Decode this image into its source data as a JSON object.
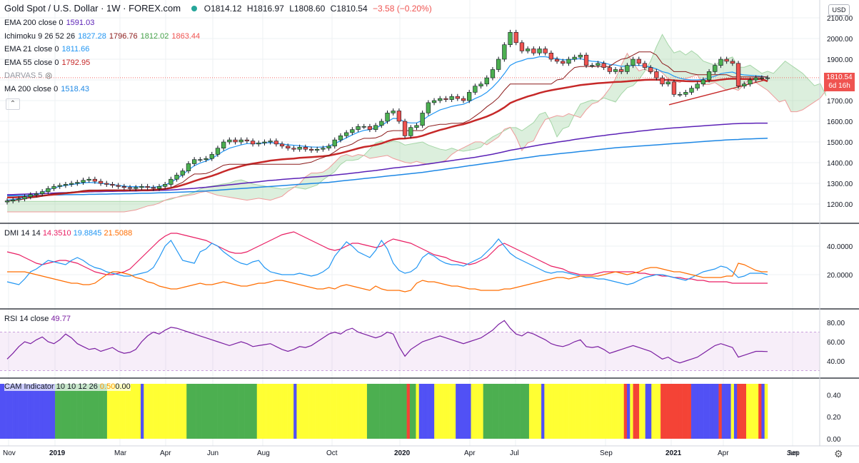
{
  "header": {
    "title": "Gold Spot / U.S. Dollar · 1W · FOREX.com",
    "open": "O1814.12",
    "high": "H1816.97",
    "low": "L1808.60",
    "close": "C1810.54",
    "change": "−3.58 (−0.20%)"
  },
  "indicators": [
    {
      "label": "EMA 200 close 0",
      "values": [
        {
          "v": "1591.03",
          "color": "#5b21b6"
        }
      ]
    },
    {
      "label": "Ichimoku 9 26 52 26",
      "values": [
        {
          "v": "1827.28",
          "color": "#2196f3"
        },
        {
          "v": "1796.76",
          "color": "#8b1a1a"
        },
        {
          "v": "1812.02",
          "color": "#43a047"
        },
        {
          "v": "1863.44",
          "color": "#ef5350"
        }
      ]
    },
    {
      "label": "EMA 21 close 0",
      "values": [
        {
          "v": "1811.66",
          "color": "#2196f3"
        }
      ]
    },
    {
      "label": "EMA 55 close 0",
      "values": [
        {
          "v": "1792.95",
          "color": "#c62828"
        }
      ]
    },
    {
      "label": "DARVAS 5",
      "values": [],
      "hidden": true
    },
    {
      "label": "MA 200 close 0",
      "values": [
        {
          "v": "1518.43",
          "color": "#1e88e5"
        }
      ]
    }
  ],
  "currency_button": "USD",
  "price_tag": {
    "price": "1810.54",
    "countdown": "6d 16h"
  },
  "dmi_label": {
    "label": "DMI 14 14",
    "v1": "14.3510",
    "v2": "19.8845",
    "v3": "21.5088"
  },
  "rsi_label": {
    "label": "RSI 14 close",
    "v": "49.77"
  },
  "cam_label": {
    "label": "CAM Indicator 10 10 12 26",
    "v": "0.50",
    "v2": "0.00"
  },
  "price_axis": [
    "2100.00",
    "2000.00",
    "1900.00",
    "1800.00",
    "1700.00",
    "1600.00",
    "1500.00",
    "1400.00",
    "1300.00",
    "1200.00"
  ],
  "dmi_axis": [
    "40.0000",
    "20.0000"
  ],
  "rsi_axis": [
    "80.00",
    "60.00",
    "40.00"
  ],
  "cam_axis": [
    "0.40",
    "0.20",
    "0.00"
  ],
  "time_axis": [
    "Nov",
    "2019",
    "Mar",
    "Apr",
    "Jun",
    "Aug",
    "Oct",
    "2020",
    "Apr",
    "Jul",
    "Sep",
    "2021",
    "Apr",
    "Jun",
    "Sep"
  ],
  "colors": {
    "up": "#4caf50",
    "down": "#ef5350",
    "ema21": "#2196f3",
    "ema55": "#c62828",
    "ema200": "#5b21b6",
    "ma200": "#1e88e5",
    "cloud_green": "#a5d6a7",
    "cloud_red": "#ef9a9a",
    "dmi_plus": "#2196f3",
    "dmi_minus": "#ff6d00",
    "adx": "#e91e63",
    "rsi": "#7b1fa2",
    "cam_green": "#4caf50",
    "cam_yellow": "#ffff33",
    "cam_blue": "#5151f5",
    "cam_red": "#f44336"
  },
  "chart_data": {
    "type": "candlestick",
    "title": "Gold Spot / U.S. Dollar · 1W · FOREX.com",
    "ylim": [
      1150,
      2150
    ],
    "close_series": [
      1215,
      1220,
      1225,
      1235,
      1245,
      1250,
      1260,
      1275,
      1285,
      1290,
      1295,
      1300,
      1305,
      1315,
      1320,
      1310,
      1300,
      1295,
      1290,
      1285,
      1280,
      1275,
      1280,
      1285,
      1280,
      1275,
      1285,
      1295,
      1320,
      1340,
      1360,
      1395,
      1415,
      1415,
      1420,
      1440,
      1470,
      1500,
      1510,
      1500,
      1510,
      1505,
      1490,
      1495,
      1500,
      1505,
      1490,
      1480,
      1470,
      1465,
      1475,
      1465,
      1460,
      1465,
      1470,
      1480,
      1510,
      1530,
      1545,
      1560,
      1575,
      1575,
      1560,
      1580,
      1600,
      1640,
      1650,
      1600,
      1530,
      1570,
      1580,
      1640,
      1690,
      1700,
      1710,
      1705,
      1720,
      1710,
      1700,
      1740,
      1770,
      1780,
      1810,
      1850,
      1900,
      1970,
      2030,
      1980,
      1940,
      1950,
      1930,
      1950,
      1930,
      1900,
      1890,
      1880,
      1900,
      1910,
      1920,
      1870,
      1870,
      1880,
      1860,
      1840,
      1850,
      1840,
      1870,
      1900,
      1880,
      1860,
      1840,
      1810,
      1780,
      1790,
      1730,
      1730,
      1740,
      1760,
      1780,
      1800,
      1840,
      1870,
      1900,
      1890,
      1880,
      1770,
      1780,
      1800,
      1810,
      1810,
      1810
    ],
    "ema21": [
      1220,
      1222,
      1226,
      1232,
      1240,
      1247,
      1256,
      1268,
      1278,
      1285,
      1290,
      1294,
      1298,
      1302,
      1305,
      1303,
      1300,
      1297,
      1294,
      1290,
      1287,
      1284,
      1284,
      1283,
      1282,
      1281,
      1285,
      1292,
      1305,
      1322,
      1342,
      1365,
      1385,
      1398,
      1408,
      1420,
      1438,
      1456,
      1470,
      1478,
      1486,
      1492,
      1492,
      1493,
      1495,
      1497,
      1494,
      1490,
      1487,
      1484,
      1482,
      1478,
      1476,
      1475,
      1476,
      1480,
      1492,
      1506,
      1520,
      1534,
      1547,
      1556,
      1560,
      1568,
      1580,
      1598,
      1614,
      1612,
      1595,
      1592,
      1592,
      1605,
      1625,
      1640,
      1655,
      1663,
      1672,
      1678,
      1682,
      1695,
      1710,
      1722,
      1740,
      1765,
      1795,
      1830,
      1870,
      1885,
      1893,
      1903,
      1905,
      1912,
      1912,
      1907,
      1902,
      1897,
      1898,
      1900,
      1903,
      1895,
      1890,
      1888,
      1882,
      1875,
      1872,
      1866,
      1866,
      1870,
      1870,
      1868,
      1862,
      1853,
      1840,
      1833,
      1818,
      1808,
      1802,
      1800,
      1800,
      1802,
      1810,
      1818,
      1830,
      1835,
      1838,
      1828,
      1824,
      1822,
      1820,
      1818,
      1812
    ],
    "ema55": [
      1232,
      1232,
      1233,
      1234,
      1236,
      1238,
      1240,
      1243,
      1246,
      1249,
      1252,
      1255,
      1258,
      1261,
      1263,
      1264,
      1265,
      1266,
      1266,
      1266,
      1266,
      1266,
      1267,
      1267,
      1267,
      1268,
      1270,
      1273,
      1278,
      1284,
      1292,
      1301,
      1311,
      1320,
      1328,
      1336,
      1346,
      1357,
      1367,
      1375,
      1383,
      1390,
      1395,
      1400,
      1405,
      1410,
      1413,
      1416,
      1418,
      1420,
      1423,
      1425,
      1427,
      1429,
      1431,
      1434,
      1440,
      1446,
      1453,
      1461,
      1469,
      1476,
      1480,
      1486,
      1493,
      1503,
      1512,
      1516,
      1517,
      1520,
      1523,
      1530,
      1540,
      1549,
      1558,
      1565,
      1573,
      1580,
      1586,
      1594,
      1604,
      1613,
      1623,
      1635,
      1650,
      1667,
      1688,
      1700,
      1710,
      1720,
      1728,
      1737,
      1744,
      1750,
      1755,
      1760,
      1765,
      1770,
      1775,
      1778,
      1781,
      1784,
      1786,
      1788,
      1790,
      1791,
      1793,
      1796,
      1798,
      1800,
      1801,
      1801,
      1800,
      1800,
      1798,
      1796,
      1794,
      1793,
      1793,
      1793,
      1795,
      1797,
      1801,
      1804,
      1806,
      1805,
      1804,
      1804,
      1804,
      1804,
      1793
    ],
    "ema200": [
      1245,
      1246,
      1247,
      1248,
      1249,
      1250,
      1251,
      1252,
      1253,
      1254,
      1255,
      1256,
      1257,
      1258,
      1259,
      1260,
      1260,
      1261,
      1261,
      1262,
      1262,
      1263,
      1263,
      1264,
      1264,
      1265,
      1266,
      1267,
      1268,
      1270,
      1272,
      1274,
      1276,
      1279,
      1281,
      1284,
      1287,
      1290,
      1293,
      1296,
      1299,
      1302,
      1305,
      1308,
      1311,
      1314,
      1316,
      1319,
      1321,
      1323,
      1325,
      1328,
      1330,
      1332,
      1334,
      1337,
      1340,
      1343,
      1346,
      1349,
      1352,
      1356,
      1359,
      1362,
      1366,
      1370,
      1374,
      1377,
      1380,
      1383,
      1386,
      1390,
      1394,
      1398,
      1402,
      1406,
      1410,
      1414,
      1418,
      1422,
      1426,
      1431,
      1436,
      1441,
      1447,
      1453,
      1460,
      1465,
      1470,
      1475,
      1480,
      1485,
      1490,
      1494,
      1499,
      1503,
      1507,
      1512,
      1516,
      1520,
      1524,
      1528,
      1531,
      1535,
      1538,
      1542,
      1545,
      1548,
      1552,
      1555,
      1558,
      1561,
      1563,
      1566,
      1568,
      1570,
      1572,
      1574,
      1576,
      1578,
      1580,
      1582,
      1584,
      1586,
      1588,
      1589,
      1590,
      1590,
      1591,
      1591,
      1591
    ],
    "ma200": [
      1240,
      1240,
      1241,
      1241,
      1242,
      1242,
      1243,
      1243,
      1244,
      1244,
      1245,
      1245,
      1246,
      1246,
      1247,
      1247,
      1248,
      1248,
      1249,
      1249,
      1250,
      1250,
      1251,
      1252,
      1252,
      1253,
      1254,
      1255,
      1256,
      1257,
      1258,
      1259,
      1260,
      1262,
      1263,
      1265,
      1267,
      1269,
      1271,
      1273,
      1275,
      1277,
      1279,
      1281,
      1283,
      1285,
      1287,
      1289,
      1291,
      1293,
      1295,
      1297,
      1299,
      1301,
      1303,
      1305,
      1308,
      1311,
      1314,
      1317,
      1320,
      1323,
      1326,
      1329,
      1332,
      1335,
      1338,
      1341,
      1344,
      1347,
      1350,
      1353,
      1357,
      1361,
      1365,
      1369,
      1373,
      1377,
      1381,
      1385,
      1389,
      1393,
      1397,
      1401,
      1405,
      1409,
      1413,
      1417,
      1421,
      1425,
      1429,
      1433,
      1436,
      1439,
      1442,
      1445,
      1448,
      1451,
      1454,
      1457,
      1460,
      1463,
      1466,
      1469,
      1472,
      1474,
      1476,
      1478,
      1480,
      1482,
      1484,
      1486,
      1488,
      1490,
      1492,
      1494,
      1496,
      1498,
      1500,
      1502,
      1504,
      1506,
      1508,
      1510,
      1511,
      1512,
      1514,
      1515,
      1516,
      1517,
      1518
    ],
    "dmi_plus": [
      15,
      14,
      13,
      17,
      22,
      24,
      27,
      30,
      29,
      28,
      27,
      30,
      32,
      30,
      27,
      25,
      24,
      22,
      21,
      20,
      19,
      19,
      20,
      21,
      22,
      25,
      32,
      40,
      44,
      37,
      30,
      29,
      28,
      36,
      38,
      42,
      40,
      36,
      33,
      30,
      28,
      27,
      29,
      30,
      25,
      22,
      21,
      20,
      20,
      20,
      21,
      20,
      19,
      20,
      22,
      25,
      33,
      38,
      43,
      40,
      36,
      34,
      32,
      37,
      44,
      38,
      28,
      23,
      21,
      22,
      25,
      32,
      35,
      33,
      30,
      28,
      27,
      27,
      26,
      28,
      30,
      32,
      36,
      40,
      45,
      40,
      35,
      32,
      30,
      28,
      26,
      24,
      22,
      21,
      22,
      22,
      21,
      20,
      19,
      18,
      18,
      17,
      17,
      16,
      15,
      14,
      13,
      14,
      16,
      18,
      19,
      20,
      20,
      19,
      18,
      17,
      16,
      18,
      20,
      22,
      23,
      24,
      26,
      25,
      22,
      18,
      19,
      21,
      21,
      21,
      20
    ],
    "dmi_minus": [
      22,
      22,
      22,
      22,
      21,
      20,
      19,
      18,
      17,
      16,
      15,
      14,
      14,
      13,
      13,
      14,
      17,
      20,
      22,
      22,
      21,
      20,
      18,
      17,
      15,
      14,
      12,
      11,
      10,
      10,
      11,
      12,
      13,
      14,
      13,
      13,
      14,
      15,
      14,
      13,
      12,
      12,
      13,
      14,
      14,
      15,
      16,
      16,
      15,
      14,
      13,
      12,
      11,
      10,
      10,
      11,
      10,
      12,
      13,
      12,
      11,
      10,
      9,
      12,
      10,
      9,
      9,
      9,
      8,
      9,
      14,
      16,
      15,
      15,
      14,
      13,
      12,
      12,
      11,
      10,
      10,
      9,
      9,
      9,
      9,
      10,
      10,
      11,
      12,
      13,
      14,
      15,
      16,
      17,
      18,
      18,
      17,
      18,
      19,
      19,
      19,
      19,
      20,
      21,
      22,
      21,
      20,
      21,
      22,
      24,
      25,
      25,
      24,
      23,
      22,
      22,
      21,
      20,
      19,
      18,
      18,
      18,
      18,
      19,
      19,
      28,
      27,
      25,
      23,
      22,
      22
    ],
    "adx": [
      36,
      35,
      34,
      32,
      30,
      28,
      27,
      28,
      29,
      30,
      30,
      29,
      28,
      26,
      24,
      22,
      21,
      20,
      20,
      21,
      22,
      24,
      28,
      32,
      36,
      40,
      44,
      47,
      49,
      49,
      48,
      47,
      46,
      45,
      44,
      42,
      40,
      38,
      36,
      35,
      35,
      36,
      38,
      40,
      42,
      44,
      46,
      48,
      49,
      50,
      48,
      46,
      44,
      42,
      40,
      38,
      37,
      38,
      40,
      42,
      42,
      41,
      40,
      39,
      40,
      43,
      45,
      44,
      43,
      42,
      40,
      38,
      36,
      34,
      33,
      32,
      30,
      29,
      28,
      27,
      28,
      30,
      32,
      36,
      40,
      42,
      40,
      38,
      36,
      34,
      32,
      30,
      28,
      26,
      25,
      24,
      22,
      21,
      20,
      20,
      20,
      21,
      22,
      22,
      22,
      22,
      22,
      22,
      21,
      21,
      20,
      20,
      19,
      19,
      18,
      18,
      17,
      17,
      16,
      16,
      15,
      15,
      15,
      15,
      14,
      14,
      14,
      14,
      14,
      14,
      14
    ],
    "rsi": [
      42,
      48,
      55,
      60,
      58,
      62,
      65,
      60,
      58,
      62,
      68,
      64,
      58,
      55,
      52,
      53,
      50,
      52,
      54,
      50,
      48,
      49,
      52,
      60,
      66,
      70,
      68,
      72,
      75,
      74,
      72,
      70,
      68,
      66,
      64,
      62,
      60,
      58,
      56,
      58,
      60,
      58,
      55,
      56,
      57,
      58,
      55,
      52,
      50,
      52,
      55,
      54,
      56,
      60,
      64,
      68,
      70,
      68,
      72,
      74,
      70,
      68,
      66,
      64,
      66,
      70,
      68,
      55,
      45,
      52,
      56,
      60,
      62,
      64,
      66,
      64,
      62,
      60,
      58,
      60,
      62,
      64,
      68,
      72,
      78,
      82,
      74,
      68,
      66,
      70,
      68,
      65,
      62,
      58,
      56,
      55,
      57,
      60,
      62,
      55,
      54,
      55,
      52,
      48,
      50,
      52,
      54,
      56,
      54,
      52,
      50,
      46,
      42,
      44,
      40,
      38,
      40,
      42,
      44,
      48,
      52,
      56,
      58,
      56,
      54,
      44,
      46,
      48,
      50,
      50,
      49.77
    ],
    "cam_states": [
      "B",
      "B",
      "B",
      "B",
      "B",
      "B",
      "B",
      "B",
      "B",
      "B",
      "B",
      "B",
      "B",
      "B",
      "B",
      "B",
      "B",
      "B",
      "G",
      "G",
      "G",
      "G",
      "G",
      "G",
      "G",
      "G",
      "G",
      "G",
      "G",
      "G",
      "G",
      "G",
      "G",
      "G",
      "G",
      "Y",
      "Y",
      "Y",
      "Y",
      "Y",
      "Y",
      "Y",
      "Y",
      "Y",
      "Y",
      "Y",
      "B",
      "Y",
      "Y",
      "Y",
      "Y",
      "Y",
      "Y",
      "Y",
      "Y",
      "Y",
      "Y",
      "Y",
      "Y",
      "Y",
      "Y",
      "G",
      "G",
      "G",
      "G",
      "G",
      "G",
      "G",
      "G",
      "G",
      "G",
      "G",
      "G",
      "G",
      "G",
      "G",
      "G",
      "G",
      "G",
      "G",
      "G",
      "G",
      "G",
      "G",
      "Y",
      "Y",
      "Y",
      "Y",
      "Y",
      "Y",
      "Y",
      "Y",
      "Y",
      "Y",
      "Y",
      "Y",
      "B",
      "Y",
      "Y",
      "Y",
      "Y",
      "Y",
      "Y",
      "Y",
      "Y",
      "Y",
      "Y",
      "Y",
      "Y",
      "Y",
      "Y",
      "Y",
      "Y",
      "Y",
      "Y",
      "Y",
      "Y",
      "Y",
      "Y",
      "Y",
      "G",
      "G",
      "G",
      "G",
      "G",
      "G",
      "G",
      "G",
      "G",
      "G",
      "G",
      "G",
      "G",
      "R",
      "G",
      "G",
      "Y",
      "B",
      "B",
      "B",
      "B",
      "B",
      "Y",
      "Y",
      "Y",
      "Y",
      "Y",
      "Y",
      "Y",
      "B",
      "B",
      "B",
      "B",
      "B",
      "Y",
      "Y",
      "Y",
      "Y",
      "G",
      "G",
      "G",
      "G",
      "G",
      "G",
      "G",
      "G",
      "G",
      "G",
      "G",
      "G",
      "G",
      "G",
      "G",
      "Y",
      "Y",
      "Y",
      "Y",
      "B",
      "Y",
      "Y",
      "Y",
      "Y",
      "Y",
      "Y",
      "Y",
      "Y",
      "Y",
      "Y",
      "Y",
      "Y",
      "Y",
      "Y",
      "Y",
      "Y",
      "Y",
      "Y",
      "Y",
      "Y",
      "Y",
      "Y",
      "Y",
      "Y",
      "Y",
      "Y",
      "R",
      "B",
      "Y",
      "R",
      "R",
      "Y",
      "Y",
      "B",
      "B",
      "Y",
      "Y",
      "Y",
      "R",
      "R",
      "R",
      "R",
      "R",
      "R",
      "R",
      "R",
      "R",
      "R",
      "B",
      "B",
      "B",
      "B",
      "B",
      "B",
      "B",
      "B",
      "B",
      "R",
      "B",
      "B",
      "B",
      "Y",
      "B",
      "R",
      "R",
      "R",
      "Y",
      "Y",
      "Y",
      "Y",
      "R",
      "B",
      "Y"
    ]
  }
}
